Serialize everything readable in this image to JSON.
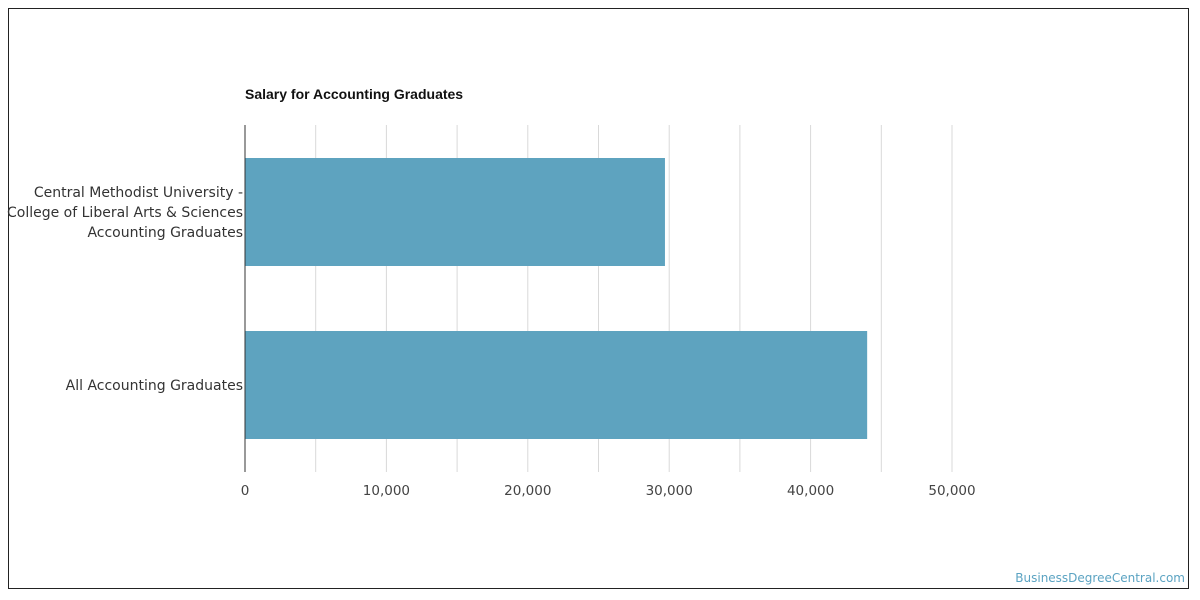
{
  "colors": {
    "bar": "#5ea3bf",
    "grid": "#d9d9d9",
    "axis": "#333333",
    "source_link": "#5ba3c2"
  },
  "source_link": "BusinessDegreeCentral.com",
  "chart_data": {
    "type": "bar",
    "orientation": "horizontal",
    "title": "Salary for Accounting Graduates",
    "categories": [
      [
        "Central Methodist University -",
        "College of Liberal Arts & Sciences",
        "Accounting Graduates"
      ],
      [
        "All Accounting Graduates"
      ]
    ],
    "values": [
      29700,
      44000
    ],
    "xlim": [
      0,
      50000
    ],
    "x_ticks": [
      0,
      10000,
      20000,
      30000,
      40000,
      50000
    ],
    "x_tick_labels": [
      "0",
      "10,000",
      "20,000",
      "30,000",
      "40,000",
      "50,000"
    ],
    "grid": true,
    "legend": false,
    "xlabel": "",
    "ylabel": ""
  }
}
